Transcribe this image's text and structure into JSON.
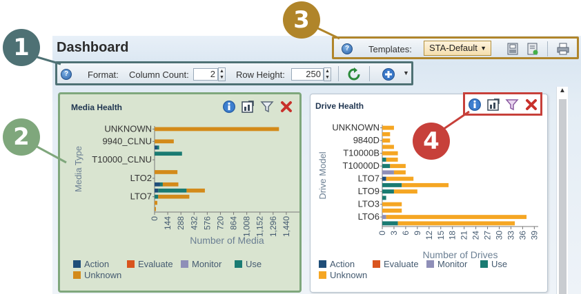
{
  "page": {
    "title": "Dashboard"
  },
  "toolbar": {
    "format_label": "Format:",
    "column_count_label": "Column Count:",
    "column_count_value": "2",
    "row_height_label": "Row Height:",
    "row_height_value": "250"
  },
  "templates": {
    "label": "Templates:",
    "selected": "STA-Default"
  },
  "callouts": [
    "1",
    "2",
    "3",
    "4"
  ],
  "legend_labels": {
    "action": "Action",
    "evaluate": "Evaluate",
    "monitor": "Monitor",
    "use": "Use",
    "unknown": "Unknown"
  },
  "colors": {
    "action": "#1f4e79",
    "evaluate": "#d9541e",
    "monitor": "#8f8fb8",
    "use": "#1a7b72",
    "unknown_media": "#d38a1a",
    "unknown_drive": "#f5a623",
    "callout1": "#4e7174",
    "callout2": "#7fa77c",
    "callout3": "#b0852a",
    "callout4": "#c7403a"
  },
  "chart_data": [
    {
      "title": "Media Health",
      "type": "bar",
      "orientation": "horizontal",
      "stacked": true,
      "xlabel": "Number of Media",
      "ylabel": "Media Type",
      "xlim": [
        0,
        1584
      ],
      "ticks": [
        "0",
        "144",
        "288",
        "432",
        "576",
        "720",
        "864",
        "1,008",
        "1,152",
        "1,296",
        "1,440"
      ],
      "tick_values": [
        0,
        144,
        288,
        432,
        576,
        720,
        864,
        1008,
        1152,
        1296,
        1440
      ],
      "labels": [
        "UNKNOWN",
        "9940_CLNU",
        "T10000_CLNU",
        "LTO2",
        "LTO7"
      ],
      "categories": [
        "UNKNOWN",
        "",
        "9940_CLNU",
        "",
        "",
        "T10000_CLNU",
        "",
        "",
        "LTO2",
        "",
        "",
        "LTO7",
        "",
        ""
      ],
      "series": [
        {
          "name": "Action",
          "values": [
            0,
            0,
            0,
            30,
            0,
            0,
            0,
            0,
            0,
            60,
            40,
            0,
            0,
            0
          ]
        },
        {
          "name": "Evaluate",
          "values": [
            0,
            0,
            0,
            0,
            0,
            0,
            0,
            0,
            0,
            0,
            0,
            0,
            0,
            0
          ]
        },
        {
          "name": "Monitor",
          "values": [
            0,
            0,
            0,
            0,
            0,
            0,
            0,
            0,
            0,
            0,
            0,
            0,
            0,
            0
          ]
        },
        {
          "name": "Use",
          "values": [
            0,
            0,
            0,
            20,
            300,
            0,
            0,
            0,
            0,
            30,
            310,
            40,
            0,
            0
          ]
        },
        {
          "name": "Unknown",
          "values": [
            1360,
            0,
            210,
            0,
            0,
            0,
            0,
            250,
            0,
            170,
            200,
            340,
            30,
            15
          ]
        }
      ]
    },
    {
      "title": "Drive Health",
      "type": "bar",
      "orientation": "horizontal",
      "stacked": true,
      "xlabel": "Number of Drives",
      "ylabel": "Drive Model",
      "xlim": [
        0,
        40
      ],
      "ticks": [
        "0",
        "3",
        "6",
        "9",
        "12",
        "15",
        "18",
        "21",
        "24",
        "27",
        "30",
        "33",
        "36",
        "39"
      ],
      "tick_values": [
        0,
        3,
        6,
        9,
        12,
        15,
        18,
        21,
        24,
        27,
        30,
        33,
        36,
        39
      ],
      "labels": [
        "UNKNOWN",
        "9840D",
        "T10000B",
        "T10000D",
        "LTO7",
        "LTO9",
        "LTO3",
        "LTO6"
      ],
      "categories": [
        "UNKNOWN",
        "",
        "9840D",
        "",
        "T10000B",
        "",
        "T10000D",
        "",
        "LTO7",
        "",
        "LTO9",
        "",
        "LTO3",
        "",
        "LTO6",
        ""
      ],
      "series": [
        {
          "name": "Action",
          "values": [
            0,
            0,
            0,
            0,
            0,
            0,
            0,
            0,
            1,
            0,
            0,
            0,
            0,
            0,
            0,
            0
          ]
        },
        {
          "name": "Evaluate",
          "values": [
            0,
            0,
            0,
            0,
            0,
            0,
            0,
            0,
            0,
            0,
            0,
            0,
            0,
            0,
            0,
            0
          ]
        },
        {
          "name": "Monitor",
          "values": [
            0,
            0,
            0,
            0,
            0,
            0,
            0,
            3,
            0,
            0,
            0,
            0,
            0,
            0,
            1,
            0
          ]
        },
        {
          "name": "Use",
          "values": [
            0,
            0,
            0,
            0,
            0,
            1,
            2,
            0,
            0,
            5,
            3,
            1,
            0,
            0,
            0,
            4
          ]
        },
        {
          "name": "Unknown",
          "values": [
            3,
            2,
            2,
            3,
            4,
            3,
            4,
            3,
            7,
            12,
            6,
            0,
            5,
            5,
            36,
            30
          ]
        }
      ]
    }
  ]
}
